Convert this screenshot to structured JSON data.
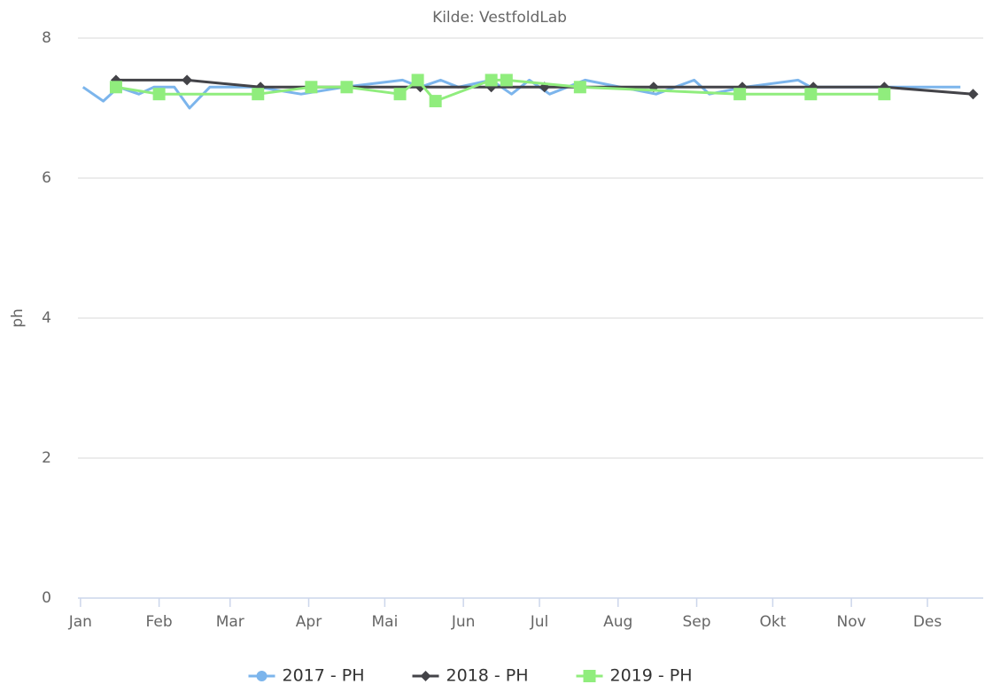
{
  "chart_data": {
    "type": "line",
    "subtitle": "Kilde: VestfoldLab",
    "y_label": "ph",
    "ylim": [
      0,
      8
    ],
    "yticks": [
      0,
      2,
      4,
      6,
      8
    ],
    "grid": true,
    "xlim": [
      -1,
      356
    ],
    "xticks": [
      {
        "value": 0,
        "label": "Jan"
      },
      {
        "value": 31,
        "label": "Feb"
      },
      {
        "value": 59,
        "label": "Mar"
      },
      {
        "value": 90,
        "label": "Apr"
      },
      {
        "value": 120,
        "label": "Mai"
      },
      {
        "value": 151,
        "label": "Jun"
      },
      {
        "value": 181,
        "label": "Jul"
      },
      {
        "value": 212,
        "label": "Aug"
      },
      {
        "value": 243,
        "label": "Sep"
      },
      {
        "value": 273,
        "label": "Okt"
      },
      {
        "value": 304,
        "label": "Nov"
      },
      {
        "value": 334,
        "label": "Des"
      }
    ],
    "legend": "bottom",
    "series": [
      {
        "name": "2017 - PH",
        "color": "#7cb5ec",
        "marker": "circle",
        "show_markers": false,
        "x": [
          1,
          9,
          15,
          23,
          29,
          37,
          43,
          51,
          70,
          87,
          104,
          127,
          134,
          142,
          149,
          162,
          170,
          177,
          185,
          199,
          213,
          227,
          242,
          248,
          262,
          283,
          288,
          347
        ],
        "values": [
          7.3,
          7.1,
          7.3,
          7.2,
          7.3,
          7.3,
          7.0,
          7.3,
          7.3,
          7.2,
          7.3,
          7.4,
          7.3,
          7.4,
          7.3,
          7.4,
          7.2,
          7.4,
          7.2,
          7.4,
          7.3,
          7.2,
          7.4,
          7.2,
          7.3,
          7.4,
          7.3,
          7.3
        ]
      },
      {
        "name": "2018 - PH",
        "color": "#434348",
        "marker": "diamond",
        "show_markers": true,
        "x": [
          14,
          42,
          71,
          106,
          134,
          162,
          183,
          226,
          261,
          289,
          317,
          352
        ],
        "values": [
          7.4,
          7.4,
          7.3,
          7.3,
          7.3,
          7.3,
          7.3,
          7.3,
          7.3,
          7.3,
          7.3,
          7.2
        ]
      },
      {
        "name": "2019 - PH",
        "color": "#90ed7d",
        "marker": "square",
        "show_markers": true,
        "x": [
          14,
          31,
          70,
          91,
          105,
          126,
          133,
          140,
          162,
          168,
          197,
          260,
          288,
          317
        ],
        "values": [
          7.3,
          7.2,
          7.2,
          7.3,
          7.3,
          7.2,
          7.4,
          7.1,
          7.4,
          7.4,
          7.3,
          7.2,
          7.2,
          7.2
        ]
      }
    ]
  }
}
